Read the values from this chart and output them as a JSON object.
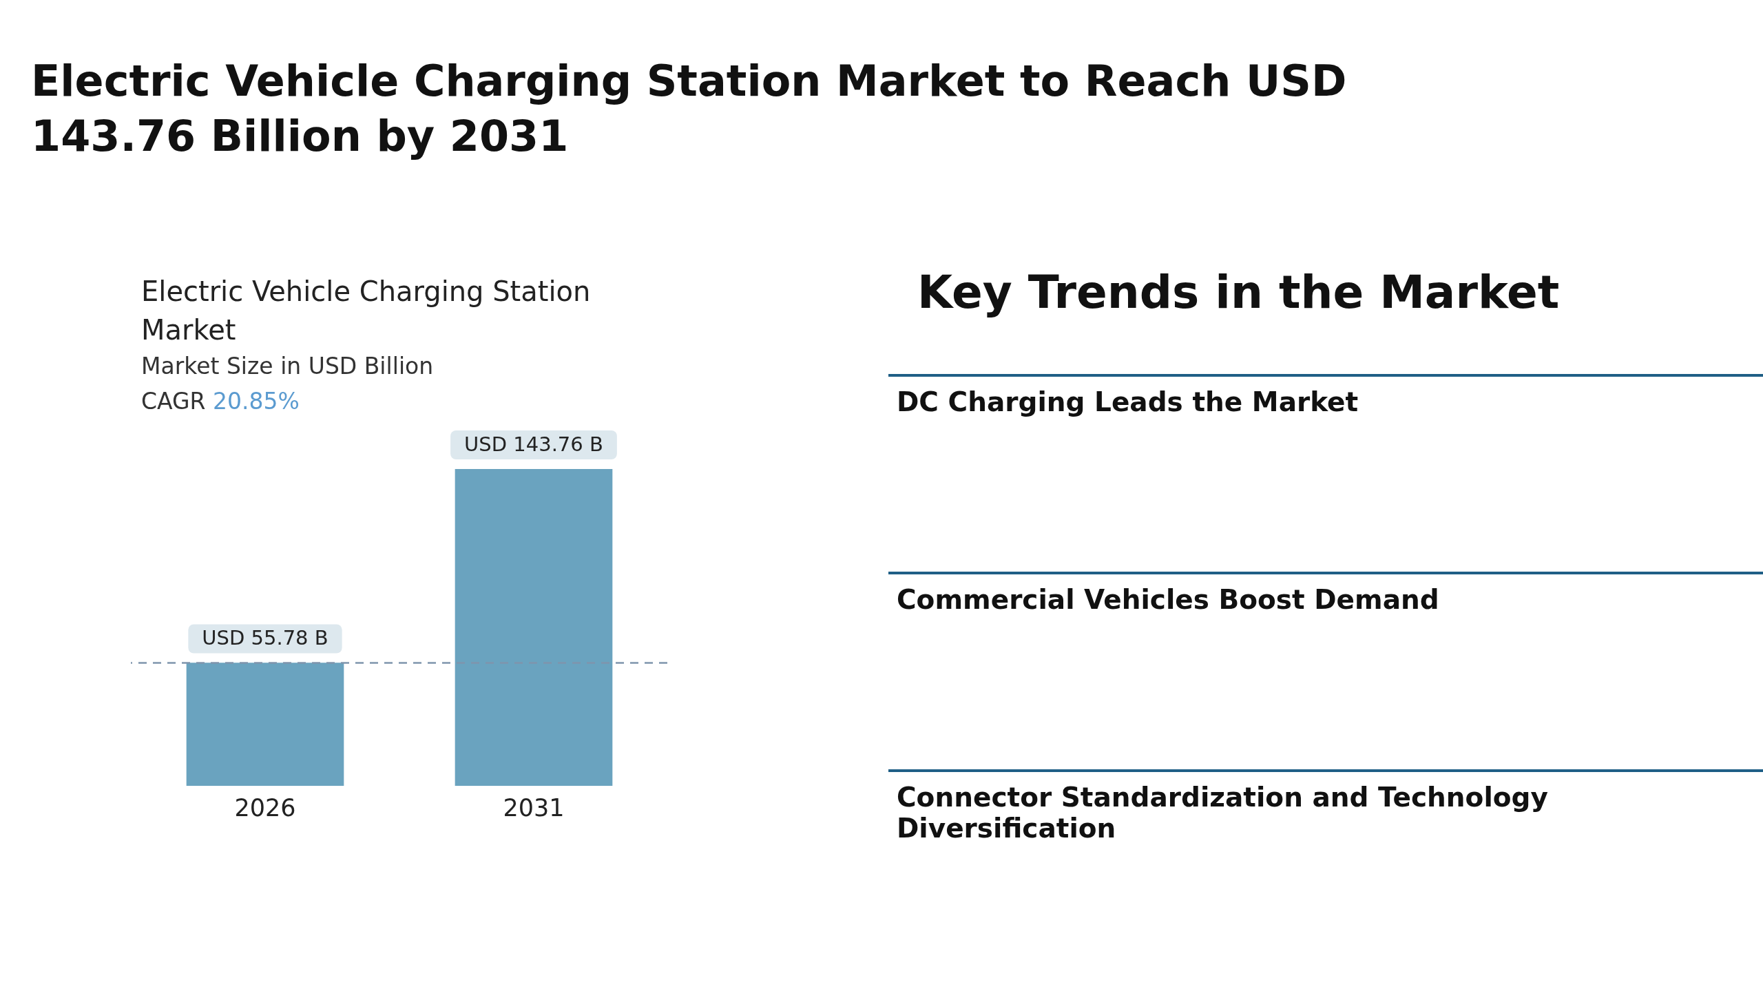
{
  "chart_data": [
    {
      "type": "bar",
      "title": "Electric Vehicle Charging Station Market",
      "subtitle": "Market Size in USD Billion",
      "annotations": [
        "Electric Vehicle Charging Station Market to Reach USD 143.76 Billion by 2031",
        "CAGR 20.85%"
      ],
      "categories": [
        "2026",
        "2031"
      ],
      "values": [
        55.78,
        143.76
      ],
      "color": "#6aa3bf",
      "value_labels": [
        "USD 55.78 B",
        "USD 143.76 B"
      ],
      "ref_lines": [
        {
          "axis": "y",
          "value": 55.78,
          "color": "#7f95ad",
          "line_style": "dashed"
        }
      ],
      "grid": false,
      "legend": false,
      "tick_labels": "x"
    },
    {
      "type": "other",
      "title": "Key Trends in the Market",
      "annotations": [
        "DC Charging Leads the Market",
        "Commercial Vehicles Boost Demand",
        "Connector Standardization and Technology Diversification"
      ]
    }
  ]
}
